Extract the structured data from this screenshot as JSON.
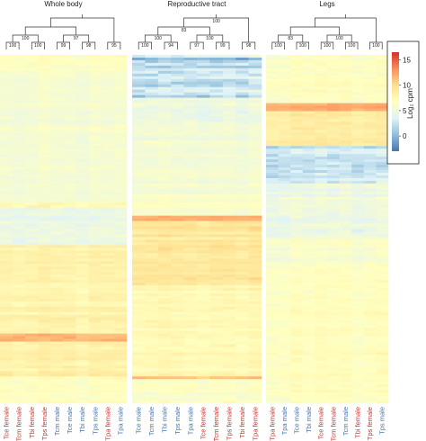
{
  "chart_data": {
    "type": "heatmap",
    "legend": {
      "title": "Log₂ cpm",
      "ticks": [
        15,
        10,
        5,
        0
      ],
      "range": [
        -3,
        16.5
      ],
      "colors": [
        "#4575b4",
        "#91bfdb",
        "#e0f3f8",
        "#ffffbf",
        "#fee090",
        "#fc8d59",
        "#d73027"
      ],
      "placement": "top-right"
    },
    "label_colors": {
      "female": "#d73027",
      "male": "#4575b4"
    },
    "panels": [
      {
        "title": "Whole body",
        "samples": [
          {
            "label": "Tce female",
            "sex": "female"
          },
          {
            "label": "Tcm female",
            "sex": "female"
          },
          {
            "label": "Tbi female",
            "sex": "female"
          },
          {
            "label": "Tps female",
            "sex": "female"
          },
          {
            "label": "Tcm male",
            "sex": "male"
          },
          {
            "label": "Tce male",
            "sex": "male"
          },
          {
            "label": "Tbi male",
            "sex": "male"
          },
          {
            "label": "Tps male",
            "sex": "male"
          },
          {
            "label": "Tpa female",
            "sex": "female"
          },
          {
            "label": "Tpa male",
            "sex": "male"
          }
        ],
        "bootstrap": [
          "100",
          "100",
          "99",
          "98",
          "95",
          "100",
          "97"
        ],
        "bands": [
          {
            "from": 0.0,
            "to": 0.05,
            "value": 6.5,
            "noise": 0.8
          },
          {
            "from": 0.05,
            "to": 0.42,
            "value": 5.6,
            "noise": 0.7
          },
          {
            "from": 0.42,
            "to": 0.44,
            "value": 7.0,
            "noise": 1.5
          },
          {
            "from": 0.44,
            "to": 0.55,
            "value": 4.5,
            "noise": 1.4
          },
          {
            "from": 0.55,
            "to": 0.8,
            "value": 7.8,
            "noise": 0.9
          },
          {
            "from": 0.8,
            "to": 0.82,
            "value": 11.5,
            "noise": 1.2
          },
          {
            "from": 0.82,
            "to": 0.92,
            "value": 8.2,
            "noise": 1.0
          },
          {
            "from": 0.92,
            "to": 1.0,
            "value": 6.6,
            "noise": 0.8
          }
        ]
      },
      {
        "title": "Reproductive tract",
        "samples": [
          {
            "label": "Tce male",
            "sex": "male"
          },
          {
            "label": "Tcm male",
            "sex": "male"
          },
          {
            "label": "Tbi male",
            "sex": "male"
          },
          {
            "label": "Tps male",
            "sex": "male"
          },
          {
            "label": "Tpa male",
            "sex": "male"
          },
          {
            "label": "Tce female",
            "sex": "female"
          },
          {
            "label": "Tcm female",
            "sex": "female"
          },
          {
            "label": "Tps female",
            "sex": "female"
          },
          {
            "label": "Tbi female",
            "sex": "female"
          },
          {
            "label": "Tpa female",
            "sex": "female"
          }
        ],
        "bootstrap": [
          "100",
          "94",
          "97",
          "99",
          "98",
          "100",
          "100",
          "83",
          "100"
        ],
        "bands": [
          {
            "from": 0.0,
            "to": 0.12,
            "value": 2.5,
            "noise": 2.6
          },
          {
            "from": 0.12,
            "to": 0.2,
            "value": 5.0,
            "noise": 1.5
          },
          {
            "from": 0.2,
            "to": 0.4,
            "value": 5.8,
            "noise": 0.8
          },
          {
            "from": 0.4,
            "to": 0.46,
            "value": 6.4,
            "noise": 0.8
          },
          {
            "from": 0.46,
            "to": 0.48,
            "value": 12.0,
            "noise": 1.0
          },
          {
            "from": 0.48,
            "to": 0.66,
            "value": 9.5,
            "noise": 1.1
          },
          {
            "from": 0.66,
            "to": 0.92,
            "value": 7.5,
            "noise": 0.9
          },
          {
            "from": 0.92,
            "to": 0.93,
            "value": 11.5,
            "noise": 1.0
          },
          {
            "from": 0.93,
            "to": 1.0,
            "value": 6.6,
            "noise": 0.8
          }
        ]
      },
      {
        "title": "Legs",
        "samples": [
          {
            "label": "Tpa female",
            "sex": "female"
          },
          {
            "label": "Tpa male",
            "sex": "male"
          },
          {
            "label": "Tce male",
            "sex": "male"
          },
          {
            "label": "Tbi male",
            "sex": "male"
          },
          {
            "label": "Tce female",
            "sex": "female"
          },
          {
            "label": "Tcm female",
            "sex": "female"
          },
          {
            "label": "Tcm male",
            "sex": "male"
          },
          {
            "label": "Tbi female",
            "sex": "female"
          },
          {
            "label": "Tps female",
            "sex": "female"
          },
          {
            "label": "Tps male",
            "sex": "male"
          }
        ],
        "bootstrap": [
          "100",
          "100",
          "100",
          "100",
          "100",
          "83",
          "100"
        ],
        "bands": [
          {
            "from": 0.0,
            "to": 0.14,
            "value": 6.5,
            "noise": 0.8
          },
          {
            "from": 0.14,
            "to": 0.16,
            "value": 12.0,
            "noise": 0.9
          },
          {
            "from": 0.16,
            "to": 0.26,
            "value": 8.5,
            "noise": 1.0
          },
          {
            "from": 0.26,
            "to": 0.37,
            "value": 2.8,
            "noise": 2.0
          },
          {
            "from": 0.37,
            "to": 0.52,
            "value": 4.8,
            "noise": 1.4
          },
          {
            "from": 0.52,
            "to": 0.6,
            "value": 6.0,
            "noise": 1.0
          },
          {
            "from": 0.6,
            "to": 1.0,
            "value": 6.6,
            "noise": 0.7
          }
        ]
      }
    ]
  }
}
